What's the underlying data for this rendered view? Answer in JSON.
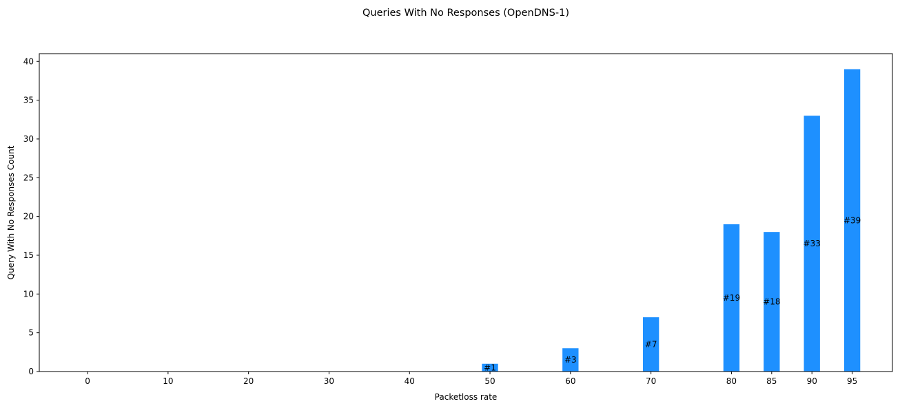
{
  "chart_data": {
    "type": "bar",
    "title": "Queries With No Responses (OpenDNS-1)",
    "xlabel": "Packetloss rate",
    "ylabel": "Query With No Responses Count",
    "categories": [
      "0",
      "10",
      "20",
      "30",
      "40",
      "50",
      "60",
      "70",
      "80",
      "85",
      "90",
      "95"
    ],
    "x": [
      0,
      10,
      20,
      30,
      40,
      50,
      60,
      70,
      80,
      85,
      90,
      95
    ],
    "values": [
      0,
      0,
      0,
      0,
      0,
      1,
      3,
      7,
      19,
      18,
      33,
      39
    ],
    "bar_labels": [
      "",
      "",
      "",
      "",
      "",
      "#1",
      "#3",
      "#7",
      "#19",
      "#18",
      "#33",
      "#39"
    ],
    "y_ticks": [
      0,
      5,
      10,
      15,
      20,
      25,
      30,
      35,
      40
    ],
    "xlim": [
      -6,
      100
    ],
    "ylim": [
      0,
      41
    ],
    "bar_color": "#1E90FF",
    "grid": false,
    "legend": "none"
  }
}
